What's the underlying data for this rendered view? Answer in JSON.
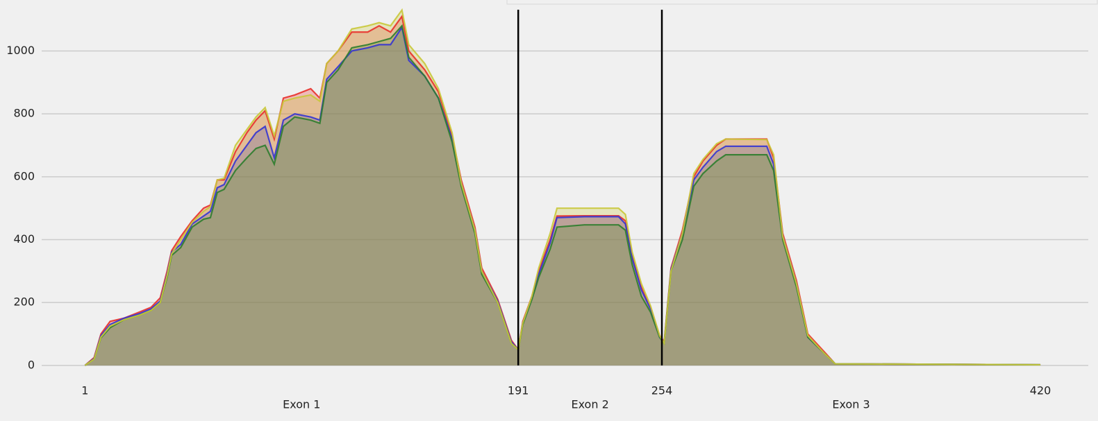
{
  "chart_data": {
    "type": "area",
    "x": [
      1,
      5,
      8,
      12,
      18,
      25,
      30,
      34,
      37,
      39,
      43,
      48,
      53,
      56,
      59,
      62,
      67,
      72,
      76,
      80,
      84,
      88,
      93,
      100,
      104,
      107,
      112,
      118,
      125,
      130,
      135,
      140,
      143,
      150,
      156,
      162,
      166,
      172,
      175,
      182,
      188,
      191,
      193,
      197,
      200,
      205,
      208,
      220,
      235,
      238,
      241,
      245,
      249,
      253,
      255,
      258,
      263,
      268,
      272,
      278,
      282,
      300,
      303,
      307,
      313,
      318,
      325,
      330,
      420
    ],
    "series": [
      {
        "color": "#e8302a",
        "values": [
          0,
          25,
          100,
          140,
          150,
          170,
          185,
          215,
          300,
          365,
          410,
          460,
          500,
          510,
          590,
          590,
          680,
          740,
          780,
          810,
          720,
          850,
          860,
          880,
          850,
          960,
          1000,
          1060,
          1060,
          1080,
          1060,
          1110,
          1000,
          940,
          870,
          730,
          590,
          440,
          310,
          210,
          80,
          50,
          140,
          220,
          300,
          400,
          475,
          476,
          476,
          460,
          350,
          250,
          185,
          95,
          75,
          310,
          430,
          600,
          650,
          700,
          720,
          720,
          660,
          420,
          270,
          100,
          45,
          5,
          2
        ]
      },
      {
        "color": "#3434d2",
        "values": [
          0,
          22,
          95,
          130,
          150,
          165,
          180,
          205,
          290,
          360,
          385,
          450,
          475,
          490,
          565,
          575,
          650,
          700,
          740,
          760,
          660,
          780,
          800,
          790,
          780,
          910,
          950,
          1000,
          1010,
          1020,
          1020,
          1075,
          970,
          920,
          850,
          720,
          580,
          430,
          300,
          205,
          75,
          50,
          135,
          215,
          290,
          390,
          470,
          473,
          473,
          450,
          340,
          240,
          180,
          90,
          70,
          305,
          420,
          590,
          630,
          680,
          697,
          697,
          640,
          410,
          260,
          90,
          40,
          5,
          2
        ]
      },
      {
        "color": "#2e7d2e",
        "values": [
          0,
          20,
          88,
          120,
          145,
          160,
          175,
          200,
          280,
          350,
          375,
          440,
          465,
          470,
          550,
          560,
          620,
          660,
          690,
          700,
          640,
          760,
          790,
          780,
          770,
          900,
          940,
          1010,
          1020,
          1030,
          1040,
          1080,
          980,
          920,
          850,
          710,
          570,
          420,
          290,
          200,
          70,
          50,
          130,
          210,
          280,
          370,
          440,
          447,
          447,
          430,
          320,
          220,
          170,
          90,
          70,
          300,
          400,
          570,
          610,
          650,
          670,
          670,
          620,
          400,
          250,
          90,
          40,
          5,
          2
        ]
      },
      {
        "color": "#c9c83a",
        "values": [
          0,
          20,
          90,
          125,
          145,
          160,
          175,
          200,
          285,
          355,
          400,
          455,
          490,
          505,
          590,
          595,
          700,
          750,
          790,
          820,
          730,
          840,
          850,
          860,
          840,
          960,
          1000,
          1070,
          1080,
          1090,
          1080,
          1130,
          1020,
          960,
          880,
          740,
          580,
          430,
          300,
          200,
          70,
          50,
          135,
          220,
          310,
          420,
          500,
          500,
          500,
          480,
          360,
          260,
          190,
          95,
          70,
          300,
          420,
          610,
          655,
          705,
          720,
          718,
          670,
          410,
          260,
          95,
          40,
          5,
          2
        ]
      }
    ],
    "xlim": [
      -18,
      441
    ],
    "ylim": [
      -40,
      1140
    ],
    "xticks": [
      1,
      191,
      254,
      420
    ],
    "yticks": [
      0,
      200,
      400,
      600,
      800,
      1000
    ],
    "vlines": [
      191,
      254
    ],
    "annotations": [
      "Exon 1",
      "Exon 2",
      "Exon 3"
    ],
    "grid": true
  }
}
